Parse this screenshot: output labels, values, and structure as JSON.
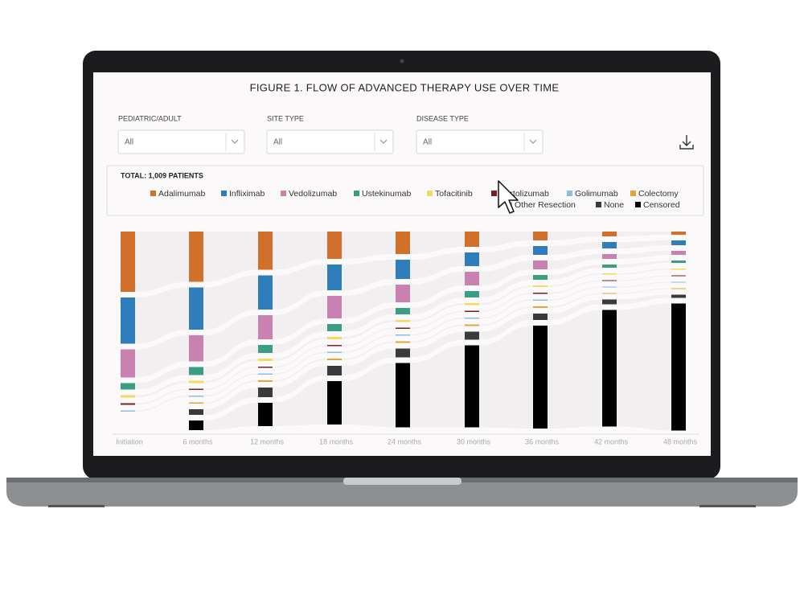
{
  "header": {
    "title": "FIGURE 1. FLOW OF ADVANCED THERAPY USE OVER TIME"
  },
  "filters": [
    {
      "label": "PEDIATRIC/ADULT",
      "value": "All"
    },
    {
      "label": "SITE TYPE",
      "value": "All"
    },
    {
      "label": "DISEASE TYPE",
      "value": "All"
    }
  ],
  "total": "TOTAL: 1,009 PATIENTS",
  "chart_data": {
    "type": "sankey",
    "categories": [
      "Initiation",
      "6 months",
      "12 months",
      "18 months",
      "24 months",
      "30 months",
      "36 months",
      "42 months",
      "48 months"
    ],
    "series": [
      {
        "name": "Adalimumab",
        "color": "#d0702a",
        "values": [
          300,
          250,
          190,
          136,
          112,
          76,
          44,
          24,
          16
        ]
      },
      {
        "name": "Infliximab",
        "color": "#2f7dba",
        "values": [
          230,
          210,
          170,
          128,
          96,
          68,
          44,
          32,
          24
        ]
      },
      {
        "name": "Vedolizumab",
        "color": "#c982b0",
        "values": [
          140,
          130,
          120,
          112,
          88,
          68,
          44,
          24,
          20
        ]
      },
      {
        "name": "Ustekinumab",
        "color": "#3a9e85",
        "values": [
          32,
          40,
          40,
          36,
          32,
          32,
          24,
          16,
          12
        ]
      },
      {
        "name": "Tofacitinib",
        "color": "#f0dc5a",
        "values": [
          12,
          12,
          12,
          12,
          10,
          10,
          8,
          6,
          6
        ]
      },
      {
        "name": "Certolizumab",
        "color": "#7a2024",
        "values": [
          8,
          6,
          6,
          6,
          6,
          6,
          6,
          4,
          4
        ]
      },
      {
        "name": "Golimumab",
        "color": "#8cbde3",
        "values": [
          6,
          6,
          6,
          6,
          6,
          6,
          6,
          4,
          4
        ]
      },
      {
        "name": "Colectomy",
        "color": "#e6a53c",
        "values": [
          0,
          6,
          8,
          8,
          8,
          8,
          8,
          4,
          4
        ]
      },
      {
        "name": "Other Resection",
        "color": "#b9a5c8",
        "values": [
          0,
          0,
          0,
          0,
          0,
          0,
          0,
          0,
          0
        ]
      },
      {
        "name": "None",
        "color": "#3a3a3a",
        "values": [
          0,
          28,
          48,
          48,
          44,
          40,
          32,
          24,
          16
        ]
      },
      {
        "name": "Censored",
        "color": "#000000",
        "values": [
          0,
          48,
          116,
          216,
          320,
          408,
          512,
          580,
          632
        ]
      }
    ]
  }
}
